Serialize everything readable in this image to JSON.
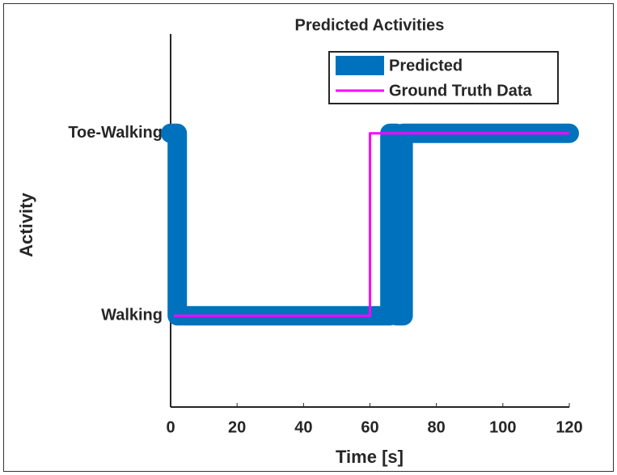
{
  "chart_data": {
    "type": "line",
    "title": "Predicted Activities",
    "xlabel": "Time [s]",
    "ylabel": "Activity",
    "series": [
      {
        "name": "Predicted",
        "color": "#0072bd",
        "x": [
          0,
          2,
          2,
          66,
          66,
          68,
          68,
          70,
          70,
          120
        ],
        "values": [
          2,
          2,
          1,
          1,
          2,
          2,
          1,
          1,
          2,
          2
        ]
      },
      {
        "name": "Ground Truth Data",
        "color": "#ff00ff",
        "x": [
          1,
          60,
          60,
          120
        ],
        "values": [
          1,
          1,
          2,
          2
        ]
      }
    ],
    "xlim": [
      0,
      120
    ],
    "xticks": [
      0,
      20,
      40,
      60,
      80,
      100,
      120
    ],
    "ylim": [
      0.5,
      2.5
    ],
    "yticks": [
      {
        "value": 1,
        "label": "Walking"
      },
      {
        "value": 2,
        "label": "Toe-Walking"
      }
    ],
    "legend": "top-right"
  }
}
